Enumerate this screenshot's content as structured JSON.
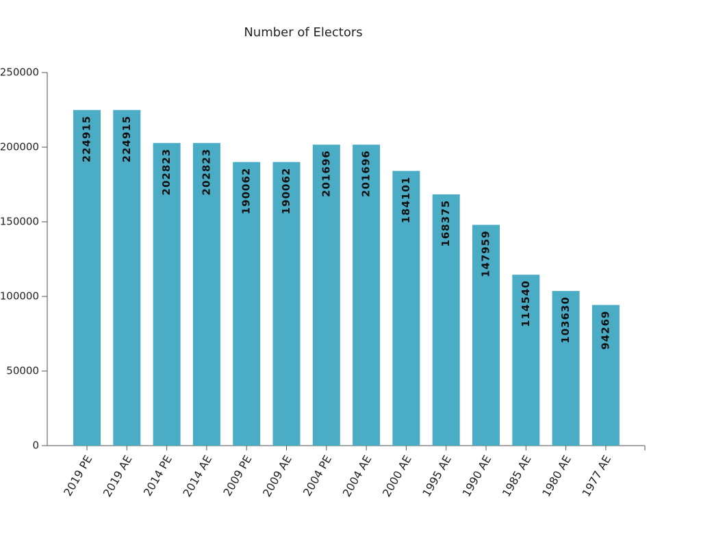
{
  "chart_data": {
    "type": "bar",
    "title": "Number of Electors",
    "categories": [
      "2019 PE",
      "2019 AE",
      "2014 PE",
      "2014 AE",
      "2009 PE",
      "2009 AE",
      "2004 PE",
      "2004 AE",
      "2000 AE",
      "1995 AE",
      "1990 AE",
      "1985 AE",
      "1980 AE",
      "1977 AE"
    ],
    "values": [
      224915,
      224915,
      202823,
      202823,
      190062,
      190062,
      201696,
      201696,
      184101,
      168375,
      147959,
      114540,
      103630,
      94269
    ],
    "color": "#4bacc6",
    "ylim": [
      0,
      250000
    ],
    "yticks": [
      0,
      50000,
      100000,
      150000,
      200000,
      250000
    ]
  }
}
